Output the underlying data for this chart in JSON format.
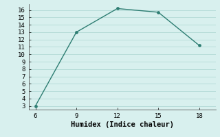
{
  "x": [
    6,
    9,
    12,
    15,
    18
  ],
  "y": [
    3,
    13,
    16.2,
    15.7,
    11.2
  ],
  "line_color": "#2d7d72",
  "marker_color": "#2d7d72",
  "background_color": "#d8f0ee",
  "grid_color": "#b8ddd9",
  "xlabel": "Humidex (Indice chaleur)",
  "xlim": [
    5.5,
    19.2
  ],
  "ylim": [
    2.5,
    16.8
  ],
  "xticks": [
    6,
    9,
    12,
    15,
    18
  ],
  "yticks": [
    3,
    4,
    5,
    6,
    7,
    8,
    9,
    10,
    11,
    12,
    13,
    14,
    15,
    16
  ],
  "xlabel_fontsize": 7.5,
  "tick_fontsize": 6.5,
  "line_width": 1.0,
  "marker_size": 2.8
}
